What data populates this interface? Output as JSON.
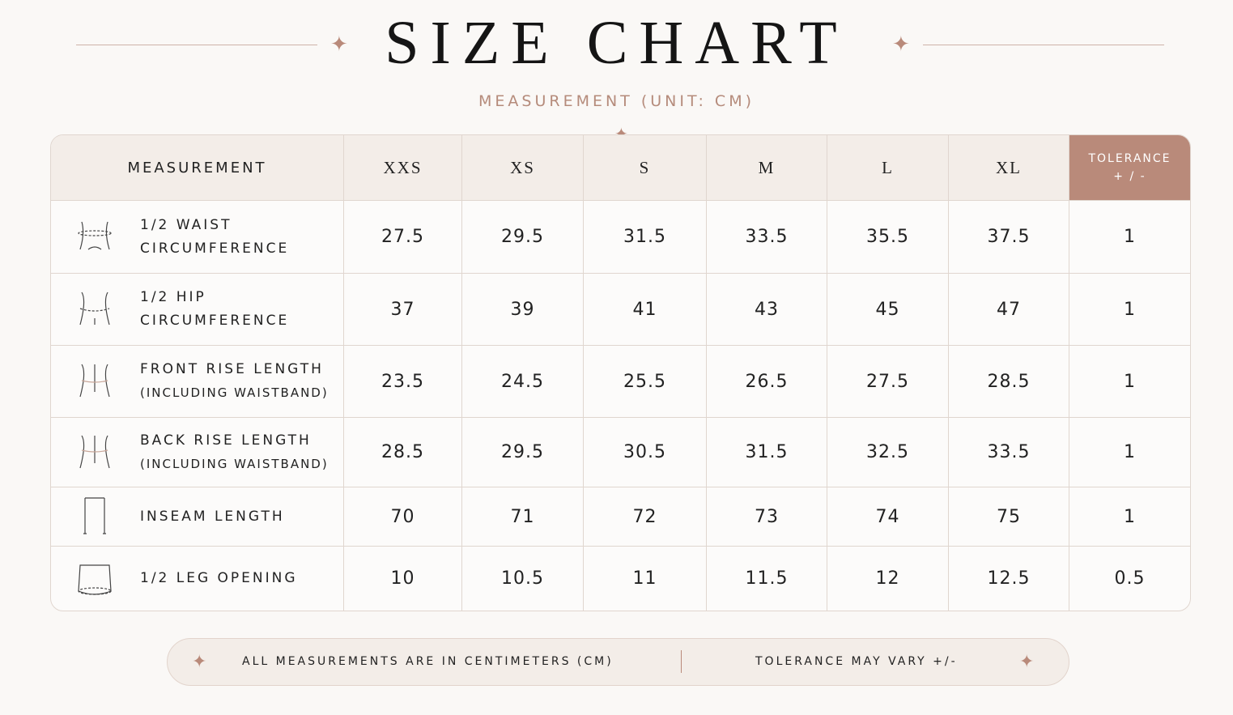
{
  "header": {
    "title": "SIZE CHART",
    "subtitle": "MEASUREMENT (UNIT: CM)"
  },
  "table": {
    "columns": [
      "MEASUREMENT",
      "XXS",
      "XS",
      "S",
      "M",
      "L",
      "XL"
    ],
    "tolerance_header": [
      "TOLERANCE",
      "+ / -"
    ],
    "rows": [
      {
        "label": [
          "1/2 WAIST",
          "CIRCUMFERENCE"
        ],
        "values": [
          "27.5",
          "29.5",
          "31.5",
          "33.5",
          "35.5",
          "37.5"
        ],
        "tolerance": "1"
      },
      {
        "label": [
          "1/2 HIP",
          "CIRCUMFERENCE"
        ],
        "values": [
          "37",
          "39",
          "41",
          "43",
          "45",
          "47"
        ],
        "tolerance": "1"
      },
      {
        "label": [
          "FRONT RISE LENGTH",
          "(INCLUDING WAISTBAND)"
        ],
        "values": [
          "23.5",
          "24.5",
          "25.5",
          "26.5",
          "27.5",
          "28.5"
        ],
        "tolerance": "1"
      },
      {
        "label": [
          "BACK RISE LENGTH",
          "(INCLUDING WAISTBAND)"
        ],
        "values": [
          "28.5",
          "29.5",
          "30.5",
          "31.5",
          "32.5",
          "33.5"
        ],
        "tolerance": "1"
      },
      {
        "label": [
          "INSEAM LENGTH"
        ],
        "values": [
          "70",
          "71",
          "72",
          "73",
          "74",
          "75"
        ],
        "tolerance": "1"
      },
      {
        "label": [
          "1/2 LEG OPENING"
        ],
        "values": [
          "10",
          "10.5",
          "11",
          "11.5",
          "12",
          "12.5"
        ],
        "tolerance": "0.5"
      }
    ]
  },
  "footer": {
    "left": "ALL MEASUREMENTS ARE IN CENTIMETERS (CM)",
    "right": "TOLERANCE MAY VARY +/-"
  }
}
